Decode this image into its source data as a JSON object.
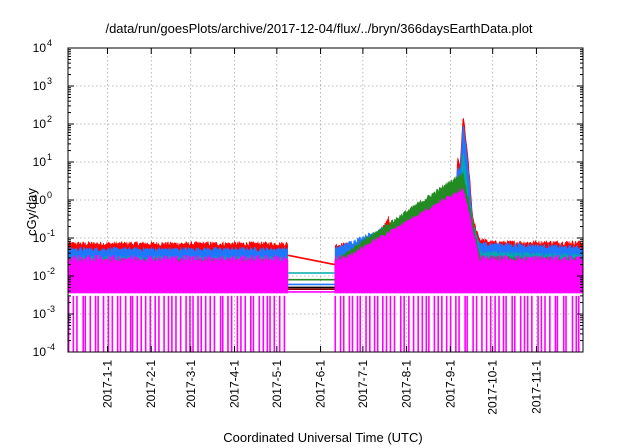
{
  "chart_data": {
    "type": "line",
    "title": "/data/run/goesPlots/archive/2017-12-04/flux/../bryn/366daysEarthData.plot",
    "xlabel": "Coordinated Universal Time (UTC)",
    "ylabel": "cGy/day",
    "yscale": "log",
    "ylim": [
      0.0001,
      10000
    ],
    "xlim": [
      "2016-12-04",
      "2017-12-04"
    ],
    "grid": true,
    "yticks": [
      {
        "base": "10",
        "exp": "-4",
        "value": 0.0001
      },
      {
        "base": "10",
        "exp": "-3",
        "value": 0.001
      },
      {
        "base": "10",
        "exp": "-2",
        "value": 0.01
      },
      {
        "base": "10",
        "exp": "-1",
        "value": 0.1
      },
      {
        "base": "10",
        "exp": "0",
        "value": 1
      },
      {
        "base": "10",
        "exp": "1",
        "value": 10
      },
      {
        "base": "10",
        "exp": "2",
        "value": 100
      },
      {
        "base": "10",
        "exp": "3",
        "value": 1000
      },
      {
        "base": "10",
        "exp": "4",
        "value": 10000
      }
    ],
    "xticks": [
      {
        "label": "2017-1-1",
        "date": "2017-01-01"
      },
      {
        "label": "2017-2-1",
        "date": "2017-02-01"
      },
      {
        "label": "2017-3-1",
        "date": "2017-03-01"
      },
      {
        "label": "2017-4-1",
        "date": "2017-04-01"
      },
      {
        "label": "2017-5-1",
        "date": "2017-05-01"
      },
      {
        "label": "2017-6-1",
        "date": "2017-06-01"
      },
      {
        "label": "2017-7-1",
        "date": "2017-07-01"
      },
      {
        "label": "2017-8-1",
        "date": "2017-08-01"
      },
      {
        "label": "2017-9-1",
        "date": "2017-09-01"
      },
      {
        "label": "2017-10-1",
        "date": "2017-10-01"
      },
      {
        "label": "2017-11-1",
        "date": "2017-11-01"
      }
    ],
    "data_gap": [
      "2017-05-09",
      "2017-06-11"
    ],
    "series": [
      {
        "color": "#ff0000",
        "baseline": 0.07,
        "points": [
          [
            "2016-12-04",
            0.07
          ],
          [
            "2017-05-09",
            0.07
          ],
          [
            "2017-06-11",
            0.065
          ],
          [
            "2017-07-10",
            0.07
          ],
          [
            "2017-07-19",
            0.35
          ],
          [
            "2017-07-22",
            0.08
          ],
          [
            "2017-08-01",
            0.1
          ],
          [
            "2017-08-05",
            0.08
          ],
          [
            "2017-09-04",
            0.09
          ],
          [
            "2017-09-06",
            12
          ],
          [
            "2017-09-08",
            8
          ],
          [
            "2017-09-10",
            180
          ],
          [
            "2017-09-12",
            40
          ],
          [
            "2017-09-14",
            8
          ],
          [
            "2017-09-17",
            0.3
          ],
          [
            "2017-09-22",
            0.09
          ],
          [
            "2017-10-01",
            0.075
          ],
          [
            "2017-12-04",
            0.075
          ]
        ]
      },
      {
        "color": "#1f77ff",
        "baseline": 0.05,
        "points": [
          [
            "2016-12-04",
            0.05
          ],
          [
            "2017-05-09",
            0.05
          ],
          [
            "2017-06-11",
            0.05
          ],
          [
            "2017-07-19",
            0.2
          ],
          [
            "2017-07-22",
            0.06
          ],
          [
            "2017-09-04",
            0.07
          ],
          [
            "2017-09-06",
            8
          ],
          [
            "2017-09-08",
            5
          ],
          [
            "2017-09-10",
            120
          ],
          [
            "2017-09-12",
            25
          ],
          [
            "2017-09-14",
            5
          ],
          [
            "2017-09-17",
            0.2
          ],
          [
            "2017-09-22",
            0.07
          ],
          [
            "2017-12-04",
            0.055
          ]
        ]
      },
      {
        "color": "#00aaaa",
        "baseline": 0.03,
        "points": [
          [
            "2016-12-04",
            0.03
          ],
          [
            "2017-05-09",
            0.03
          ],
          [
            "2017-06-11",
            0.03
          ],
          [
            "2017-09-06",
            0.1
          ],
          [
            "2017-09-10",
            20
          ],
          [
            "2017-09-14",
            1
          ],
          [
            "2017-09-22",
            0.04
          ],
          [
            "2017-12-04",
            0.033
          ]
        ]
      },
      {
        "color": "#228b22",
        "baseline": 0.025,
        "points": [
          [
            "2016-12-04",
            0.025
          ],
          [
            "2017-05-09",
            0.025
          ],
          [
            "2017-06-11",
            0.025
          ],
          [
            "2017-09-10",
            5
          ],
          [
            "2017-09-22",
            0.03
          ],
          [
            "2017-12-04",
            0.027
          ]
        ]
      },
      {
        "color": "#ff00ff",
        "baseline": 0.02,
        "points": [
          [
            "2016-12-04",
            0.02
          ],
          [
            "2017-05-09",
            0.02
          ],
          [
            "2017-06-11",
            0.02
          ],
          [
            "2017-09-10",
            2
          ],
          [
            "2017-09-22",
            0.025
          ],
          [
            "2017-12-04",
            0.022
          ]
        ]
      }
    ],
    "gap_lines": [
      {
        "color": "#ff0000",
        "y": [
          0.035,
          0.02
        ]
      },
      {
        "color": "#00aaaa",
        "y": [
          0.012,
          0.012
        ]
      },
      {
        "color": "#228b22",
        "y": [
          0.008,
          0.008
        ]
      },
      {
        "color": "#1f77ff",
        "y": [
          0.006,
          0.006
        ]
      },
      {
        "color": "#000000",
        "y": [
          0.005,
          0.005
        ]
      },
      {
        "color": "#8b0000",
        "y": [
          0.0045,
          0.0045
        ]
      },
      {
        "color": "#ff00ff",
        "y": [
          0.0038,
          0.0038
        ]
      }
    ]
  }
}
